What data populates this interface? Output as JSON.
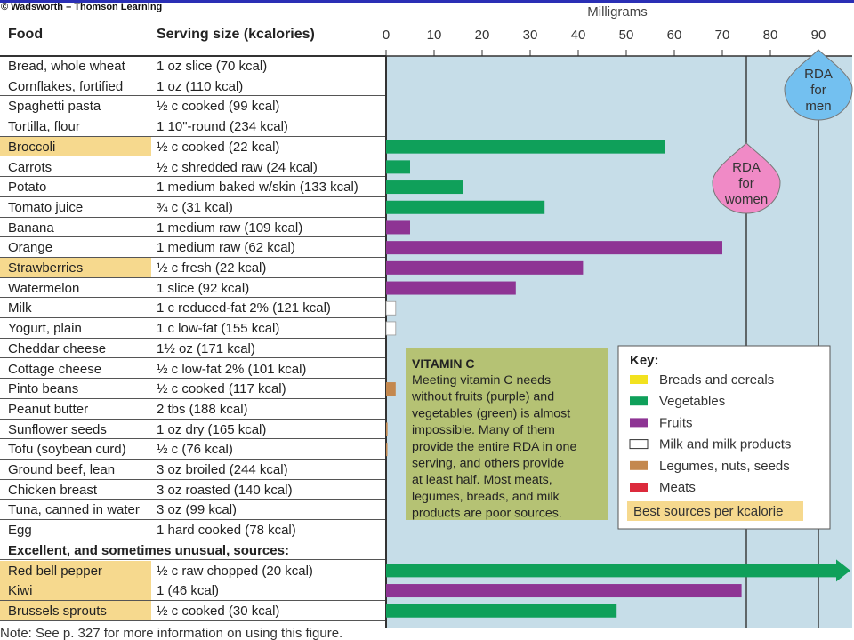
{
  "copyright": "© Wadsworth – Thomson Learning",
  "headers": {
    "food": "Food",
    "serving": "Serving size (kcalories)"
  },
  "rows": [
    {
      "food": "Bread, whole wheat",
      "serving": "1 oz slice (70 kcal)",
      "highlight": false
    },
    {
      "food": "Cornflakes, fortified",
      "serving": "1 oz (110 kcal)",
      "highlight": false
    },
    {
      "food": "Spaghetti pasta",
      "serving": "½ c cooked (99 kcal)",
      "highlight": false
    },
    {
      "food": "Tortilla, flour",
      "serving": "1 10\"-round (234 kcal)",
      "highlight": false
    },
    {
      "food": "Broccoli",
      "serving": "½ c cooked (22 kcal)",
      "highlight": true
    },
    {
      "food": "Carrots",
      "serving": "½ c shredded raw (24 kcal)",
      "highlight": false
    },
    {
      "food": "Potato",
      "serving": "1 medium baked w/skin (133 kcal)",
      "highlight": false
    },
    {
      "food": "Tomato juice",
      "serving": "¾ c (31 kcal)",
      "highlight": false
    },
    {
      "food": "Banana",
      "serving": "1 medium raw (109 kcal)",
      "highlight": false
    },
    {
      "food": "Orange",
      "serving": "1 medium raw (62 kcal)",
      "highlight": false
    },
    {
      "food": "Strawberries",
      "serving": "½ c fresh (22 kcal)",
      "highlight": true
    },
    {
      "food": "Watermelon",
      "serving": "1 slice (92 kcal)",
      "highlight": false
    },
    {
      "food": "Milk",
      "serving": "1 c reduced-fat 2% (121 kcal)",
      "highlight": false
    },
    {
      "food": "Yogurt, plain",
      "serving": "1 c low-fat (155 kcal)",
      "highlight": false
    },
    {
      "food": "Cheddar cheese",
      "serving": "1½ oz (171 kcal)",
      "highlight": false
    },
    {
      "food": "Cottage cheese",
      "serving": "½ c low-fat 2% (101 kcal)",
      "highlight": false
    },
    {
      "food": "Pinto beans",
      "serving": "½ c cooked (117 kcal)",
      "highlight": false
    },
    {
      "food": "Peanut butter",
      "serving": "2 tbs (188 kcal)",
      "highlight": false
    },
    {
      "food": "Sunflower seeds",
      "serving": "1 oz dry (165 kcal)",
      "highlight": false
    },
    {
      "food": "Tofu (soybean curd)",
      "serving": "½ c (76 kcal)",
      "highlight": false
    },
    {
      "food": "Ground beef, lean",
      "serving": "3 oz broiled (244 kcal)",
      "highlight": false
    },
    {
      "food": "Chicken breast",
      "serving": "3 oz roasted (140 kcal)",
      "highlight": false
    },
    {
      "food": "Tuna, canned in water",
      "serving": "3 oz (99 kcal)",
      "highlight": false
    },
    {
      "food": "Egg",
      "serving": "1 hard cooked (78 kcal)",
      "highlight": false
    },
    {
      "section": "Excellent, and sometimes unusual, sources:"
    },
    {
      "food": "Red bell pepper",
      "serving": "½ c raw chopped (20 kcal)",
      "highlight": true
    },
    {
      "food": "Kiwi",
      "serving": "1 (46 kcal)",
      "highlight": true
    },
    {
      "food": "Brussels sprouts",
      "serving": "½ c cooked (30 kcal)",
      "highlight": true
    }
  ],
  "footnote": "Note: See p. 327 for more information on using this figure.",
  "chart_data": {
    "type": "bar",
    "orientation": "horizontal",
    "xlabel": "Milligrams",
    "xlim": [
      0,
      95
    ],
    "xticks": [
      0,
      10,
      20,
      30,
      40,
      50,
      60,
      70,
      80,
      90
    ],
    "categories": [
      "Bread, whole wheat",
      "Cornflakes, fortified",
      "Spaghetti pasta",
      "Tortilla, flour",
      "Broccoli",
      "Carrots",
      "Potato",
      "Tomato juice",
      "Banana",
      "Orange",
      "Strawberries",
      "Watermelon",
      "Milk",
      "Yogurt, plain",
      "Cheddar cheese",
      "Cottage cheese",
      "Pinto beans",
      "Peanut butter",
      "Sunflower seeds",
      "Tofu (soybean curd)",
      "Ground beef, lean",
      "Chicken breast",
      "Tuna, canned in water",
      "Egg",
      "",
      "Red bell pepper",
      "Kiwi",
      "Brussels sprouts"
    ],
    "values": [
      0,
      0,
      0,
      0,
      58,
      5,
      16,
      33,
      5,
      70,
      41,
      27,
      2,
      2,
      0,
      0,
      2,
      0,
      0.3,
      0.2,
      0,
      0,
      0,
      0,
      null,
      95,
      74,
      48
    ],
    "groups": [
      "breads",
      "breads",
      "breads",
      "breads",
      "vegetables",
      "vegetables",
      "vegetables",
      "vegetables",
      "fruits",
      "fruits",
      "fruits",
      "fruits",
      "milk",
      "milk",
      "milk",
      "milk",
      "legumes",
      "legumes",
      "legumes",
      "legumes",
      "meats",
      "meats",
      "meats",
      "meats",
      "",
      "vegetables",
      "fruits",
      "vegetables"
    ],
    "arrow_rows": [
      25
    ],
    "reference_lines": [
      {
        "label": "RDA for women",
        "value": 75,
        "lines": [
          "RDA",
          "for",
          "women"
        ],
        "color": "#f08ac6"
      },
      {
        "label": "RDA for men",
        "value": 90,
        "lines": [
          "RDA",
          "for",
          "men"
        ],
        "color": "#73c0f0"
      }
    ],
    "note": {
      "title": "VITAMIN C",
      "lines": [
        "Meeting vitamin C needs",
        "without fruits (purple) and",
        "vegetables (green) is almost",
        "impossible. Many of them",
        "provide the entire RDA in one",
        "serving, and others provide",
        "at least half. Most meats,",
        "legumes, breads, and milk",
        "products are poor sources."
      ]
    },
    "key": {
      "title": "Key:",
      "items": [
        {
          "group": "breads",
          "label": "Breads and cereals",
          "color": "#f2e21f"
        },
        {
          "group": "vegetables",
          "label": "Vegetables",
          "color": "#0fa05a"
        },
        {
          "group": "fruits",
          "label": "Fruits",
          "color": "#8e3494"
        },
        {
          "group": "milk",
          "label": "Milk and milk products",
          "color": "#ffffff"
        },
        {
          "group": "legumes",
          "label": "Legumes, nuts, seeds",
          "color": "#c4884e"
        },
        {
          "group": "meats",
          "label": "Meats",
          "color": "#dc2a3c"
        }
      ],
      "best_sources_label": "Best sources per kcalorie"
    },
    "colors": {
      "plot_bg": "#c6dde8",
      "gridline": "#333333",
      "note_bg": "#b5c274",
      "best_sources_bg": "#f6d98e"
    }
  }
}
